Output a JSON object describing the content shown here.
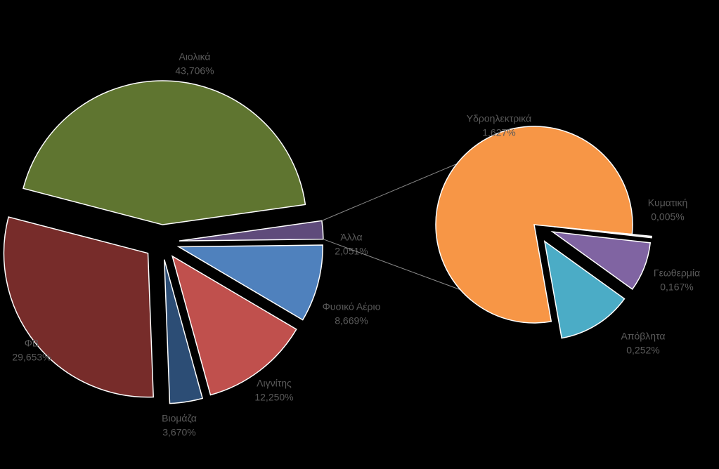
{
  "chart_data": {
    "type": "pie",
    "categories": [
      "Αιολικά",
      "Άλλα",
      "Φυσικό Αέριο",
      "Λιγνίτης",
      "Βιομάζα",
      "ΦΒ"
    ],
    "values": [
      43.706,
      2.051,
      8.669,
      12.25,
      3.67,
      29.653
    ],
    "value_labels": [
      "43,706%",
      "2,051%",
      "8,669%",
      "12,250%",
      "3,670%",
      "29,653%"
    ],
    "colors": [
      "#5f7530",
      "#5f4b7b",
      "#4f81bd",
      "#c0504d",
      "#2c4d75",
      "#772c2a"
    ],
    "secondary": {
      "categories": [
        "Υδροηλεκτρικά",
        "Κυματική",
        "Γεωθερμία",
        "Απόβλητα"
      ],
      "values": [
        1.627,
        0.005,
        0.167,
        0.252
      ],
      "value_labels": [
        "1,627%",
        "0,005%",
        "0,167%",
        "0,252%"
      ],
      "colors": [
        "#f79646",
        "#d9d9d9",
        "#8064a2",
        "#4bacc6"
      ]
    }
  }
}
